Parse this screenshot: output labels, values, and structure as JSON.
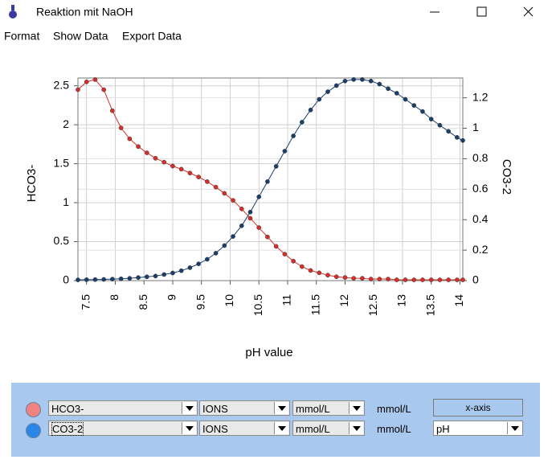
{
  "window": {
    "title": "Reaktion mit NaOH"
  },
  "menu": [
    "Format",
    "Show Data",
    "Export Data"
  ],
  "chart_data": {
    "type": "line",
    "xlabel": "pH value",
    "ylabel": "HCO3-",
    "y2label": "CO3-2",
    "x": [
      7.35,
      7.5,
      7.65,
      7.8,
      7.95,
      8.1,
      8.25,
      8.4,
      8.55,
      8.7,
      8.85,
      9.0,
      9.15,
      9.3,
      9.45,
      9.6,
      9.75,
      9.9,
      10.05,
      10.2,
      10.35,
      10.5,
      10.65,
      10.8,
      10.95,
      11.1,
      11.25,
      11.4,
      11.55,
      11.7,
      11.85,
      12.0,
      12.15,
      12.3,
      12.45,
      12.6,
      12.75,
      12.9,
      13.05,
      13.2,
      13.35,
      13.5,
      13.65,
      13.8,
      13.95,
      14.05
    ],
    "series": [
      {
        "name": "HCO3-",
        "color": "#d62f2a",
        "values": [
          2.45,
          2.55,
          2.58,
          2.45,
          2.18,
          1.96,
          1.82,
          1.72,
          1.64,
          1.57,
          1.52,
          1.47,
          1.43,
          1.38,
          1.33,
          1.27,
          1.2,
          1.12,
          1.03,
          0.92,
          0.8,
          0.68,
          0.56,
          0.44,
          0.34,
          0.25,
          0.18,
          0.13,
          0.1,
          0.07,
          0.05,
          0.04,
          0.03,
          0.03,
          0.02,
          0.02,
          0.02,
          0.01,
          0.01,
          0.01,
          0.01,
          0.01,
          0.01,
          0.01,
          0.01,
          0.01
        ]
      },
      {
        "name": "CO3-2",
        "color": "#1b3f6b",
        "axis": "y2",
        "values": [
          0.005,
          0.006,
          0.007,
          0.008,
          0.01,
          0.012,
          0.015,
          0.02,
          0.025,
          0.03,
          0.04,
          0.05,
          0.065,
          0.085,
          0.11,
          0.14,
          0.18,
          0.23,
          0.29,
          0.36,
          0.45,
          0.55,
          0.65,
          0.75,
          0.85,
          0.95,
          1.04,
          1.12,
          1.19,
          1.24,
          1.28,
          1.31,
          1.32,
          1.32,
          1.31,
          1.29,
          1.26,
          1.23,
          1.19,
          1.15,
          1.11,
          1.06,
          1.02,
          0.98,
          0.94,
          0.92
        ]
      }
    ],
    "xlim": [
      7.35,
      14.05
    ],
    "xticks": [
      7.5,
      8,
      8.5,
      9,
      9.5,
      10,
      10.5,
      11,
      11.5,
      12,
      12.5,
      13,
      13.5,
      14
    ],
    "ylim": [
      0,
      2.6
    ],
    "yticks": [
      0,
      0.5,
      1,
      1.5,
      2,
      2.5
    ],
    "y2lim": [
      0,
      1.33
    ],
    "y2ticks": [
      0,
      0.2,
      0.4,
      0.6,
      0.8,
      1,
      1.2
    ],
    "grid": true
  },
  "controls": {
    "rows": [
      {
        "kind": "IONS",
        "unit": "mmol/L",
        "unit_label": "mmol/L"
      },
      {
        "kind": "IONS",
        "unit": "mmol/L",
        "unit_label": "mmol/L"
      }
    ],
    "x_axis": {
      "label": "x-axis",
      "value": "pH"
    }
  }
}
